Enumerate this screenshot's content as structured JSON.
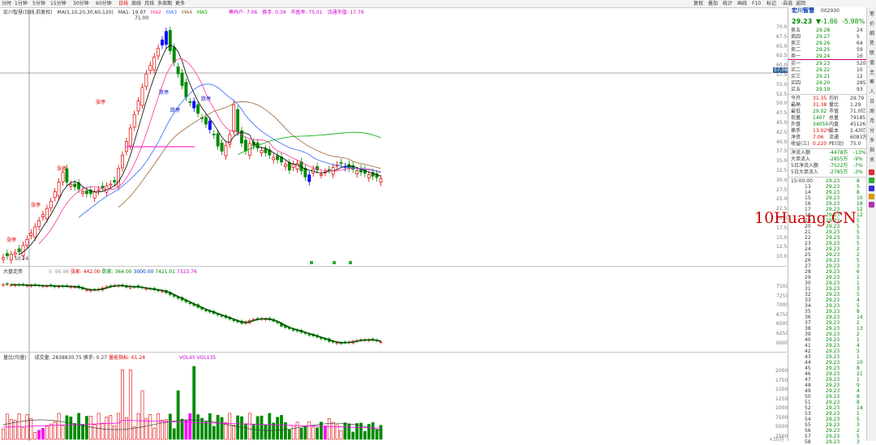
{
  "toolbar": {
    "left_items": [
      "分时",
      "1分钟",
      "5分钟",
      "15分钟",
      "30分钟",
      "60分钟",
      "日线",
      "周线",
      "月线",
      "多周期",
      "更多"
    ],
    "right_items": [
      "复权",
      "叠加",
      "统计",
      "画线",
      "F10",
      "标记",
      "-自选",
      "返回"
    ]
  },
  "main_chart": {
    "title": "宏川智慧(日线,前复权)",
    "ma_legend": "MA(5,10,20,30,60,120)",
    "ma1": "MA1: 19.97",
    "ma2": "MA2",
    "ma3": "MA3",
    "ma4": "MA4",
    "ma5": "MA5",
    "extra1": "筹码户: 7.06",
    "extra2": "换手: 0.39",
    "extra3": "市盈率: 75.01",
    "extra4": "流通市值: 17.79",
    "high_label": "71.00",
    "low_label": "10.24",
    "crosshair_value": "57.08",
    "price_labels": [
      "70.00",
      "67.50",
      "65.00",
      "62.50",
      "60.00",
      "57.50",
      "55.00",
      "52.50",
      "50.00",
      "47.50",
      "45.00",
      "42.50",
      "40.00",
      "37.50",
      "35.00",
      "32.50",
      "30.00",
      "27.50",
      "25.00",
      "22.50",
      "20.00",
      "17.50",
      "15.00",
      "12.50",
      "10.00"
    ],
    "annotations": [
      "涨停",
      "涨停",
      "涨停",
      "涨停",
      "跌停",
      "跌停",
      "跌停"
    ]
  },
  "index_panel": {
    "title": "大盘走势",
    "values": [
      "5: 96.98",
      "涨家: 442.00",
      "跌家: 364.00",
      "3000.00",
      "7421.01",
      "7323.76"
    ],
    "labels": [
      "7500",
      "7250",
      "7000",
      "6750",
      "6500",
      "6250",
      "6000"
    ]
  },
  "volume_panel": {
    "title": "量比(均量)",
    "stats": [
      "成交量: 2838830.75",
      "换手: 0.27",
      "量能指标: 61.24",
      "VOL45",
      "VOL135"
    ],
    "labels": [
      "20000",
      "17500",
      "15000",
      "12500",
      "10000",
      "7500",
      "5000",
      "2500"
    ],
    "unit": "×10万"
  },
  "quote": {
    "name": "宏川智慧",
    "code": "002930",
    "price": "29.23",
    "change": "▼-1.86",
    "pct": "-5.98%",
    "asks": [
      {
        "label": "卖五",
        "price": "29.28",
        "vol": "24"
      },
      {
        "label": "卖四",
        "price": "29.27",
        "vol": "5"
      },
      {
        "label": "卖三",
        "price": "29.26",
        "vol": "64"
      },
      {
        "label": "卖二",
        "price": "29.25",
        "vol": "59"
      },
      {
        "label": "卖一",
        "price": "29.24",
        "vol": "16"
      }
    ],
    "bids": [
      {
        "label": "买一",
        "price": "29.23",
        "vol": "520"
      },
      {
        "label": "买二",
        "price": "29.22",
        "vol": "10"
      },
      {
        "label": "买三",
        "price": "29.21",
        "vol": "12"
      },
      {
        "label": "买四",
        "price": "29.20",
        "vol": "285"
      },
      {
        "label": "买五",
        "price": "29.19",
        "vol": "93"
      }
    ],
    "stats": [
      {
        "l1": "今开",
        "v1": "31.35",
        "l2": "均价",
        "v2": "29.79"
      },
      {
        "l1": "最高",
        "v1": "31.38",
        "l2": "量比",
        "v2": "1.29"
      },
      {
        "l1": "最低",
        "v1": "29.02",
        "l2": "市值",
        "v2": "71.0亿"
      },
      {
        "l1": "现量",
        "v1": "1407",
        "l2": "总量",
        "v2": "79185"
      },
      {
        "l1": "外盘",
        "v1": "34059",
        "l2": "内盘",
        "v2": "45126"
      },
      {
        "l1": "换手",
        "v1": "13.02%",
        "l2": "股本",
        "v2": "2.43亿"
      },
      {
        "l1": "净资",
        "v1": "7.06",
        "l2": "流通",
        "v2": "6083万"
      },
      {
        "l1": "收益(三)",
        "v1": "0.220",
        "l2": "PE(动)",
        "v2": "75.0"
      }
    ],
    "fund_flow": [
      {
        "label": "净流入额",
        "value": "-4478万",
        "pct": "-13%"
      },
      {
        "label": "大单流入",
        "value": "-2855万",
        "pct": "-9%"
      },
      {
        "label": "5日净流入额",
        "value": "-7522万",
        "pct": "-7%"
      },
      {
        "label": "5日大单流入",
        "value": "-2785万",
        "pct": "-3%"
      }
    ],
    "tick_header": {
      "time": "15:00:00",
      "price": "29.23",
      "vol": "8"
    },
    "ticks": [
      [
        "13",
        "29.23",
        "5"
      ],
      [
        "14",
        "29.23",
        "8"
      ],
      [
        "15",
        "29.23",
        "10"
      ],
      [
        "16",
        "29.23",
        "18"
      ],
      [
        "17",
        "29.23",
        "12"
      ],
      [
        "18",
        "29.23",
        "12"
      ],
      [
        "19",
        "29.23",
        "5"
      ],
      [
        "20",
        "29.23",
        "5"
      ],
      [
        "21",
        "29.23",
        "5"
      ],
      [
        "22",
        "29.23",
        "5"
      ],
      [
        "23",
        "29.23",
        "5"
      ],
      [
        "24",
        "29.23",
        "2"
      ],
      [
        "25",
        "29.23",
        "2"
      ],
      [
        "26",
        "29.23",
        "5"
      ],
      [
        "27",
        "29.23",
        "3"
      ],
      [
        "28",
        "29.23",
        "6"
      ],
      [
        "29",
        "29.23",
        "1"
      ],
      [
        "30",
        "29.23",
        "1"
      ],
      [
        "31",
        "29.23",
        "3"
      ],
      [
        "32",
        "29.23",
        "5"
      ],
      [
        "33",
        "29.23",
        "4"
      ],
      [
        "34",
        "29.23",
        "5"
      ],
      [
        "35",
        "29.23",
        "8"
      ],
      [
        "36",
        "29.23",
        "14"
      ],
      [
        "37",
        "29.23",
        "2"
      ],
      [
        "38",
        "29.23",
        "13"
      ],
      [
        "39",
        "29.23",
        "2"
      ],
      [
        "40",
        "29.23",
        "1"
      ],
      [
        "41",
        "29.23",
        "4"
      ],
      [
        "42",
        "29.23",
        "5"
      ],
      [
        "43",
        "29.23",
        "1"
      ],
      [
        "44",
        "29.23",
        "10"
      ],
      [
        "45",
        "29.23",
        "8"
      ],
      [
        "46",
        "29.23",
        "21"
      ],
      [
        "47",
        "29.23",
        "1"
      ],
      [
        "48",
        "29.23",
        "9"
      ],
      [
        "49",
        "29.23",
        "4"
      ],
      [
        "50",
        "29.23",
        "8"
      ],
      [
        "51",
        "29.23",
        "8"
      ],
      [
        "52",
        "29.23",
        "14"
      ],
      [
        "53",
        "29.23",
        "1"
      ],
      [
        "54",
        "29.23",
        "5"
      ],
      [
        "55",
        "29.23",
        "3"
      ],
      [
        "56",
        "29.23",
        "2"
      ],
      [
        "57",
        "29.23",
        "5"
      ],
      [
        "58",
        "29.23",
        "3"
      ]
    ]
  },
  "side_tabs": [
    "笔",
    "价",
    "细",
    "势",
    "联",
    "值",
    "主",
    "筹",
    "人",
    "日",
    "周",
    "月",
    "分",
    "多",
    "指",
    "关"
  ],
  "watermark": "10Huang.CN",
  "colors": {
    "up": "#e00000",
    "down": "#008a00",
    "limit_down": "#0000ff",
    "volume_pink": "#ff00ff",
    "ma5": "#000000",
    "ma10": "#ff3399",
    "ma20": "#3366ff",
    "ma30": "#996633",
    "ma60": "#00aa00"
  }
}
